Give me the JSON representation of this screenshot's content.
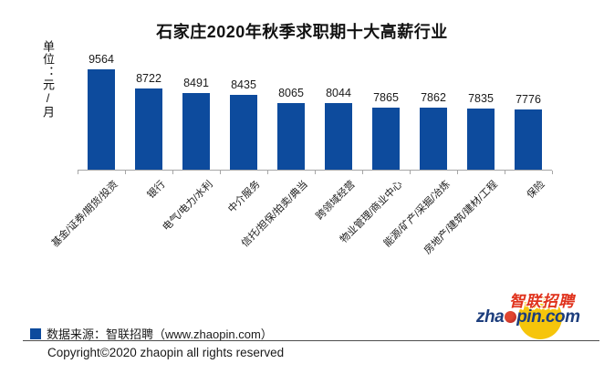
{
  "title": "石家庄2020年秋季求职期十大高薪行业",
  "unit_label": "单位：元/月",
  "chart_data": {
    "type": "bar",
    "title": "石家庄2020年秋季求职期十大高薪行业",
    "ylabel": "单位：元/月",
    "categories": [
      "基金/证券/期货/投资",
      "银行",
      "电气/电力/水利",
      "中介服务",
      "信托/担保/拍卖/典当",
      "跨领域经营",
      "物业管理/商业中心",
      "能源/矿产/采掘/冶炼",
      "房地产/建筑/建材/工程",
      "保险"
    ],
    "values": [
      9564,
      8722,
      8491,
      8435,
      8065,
      8044,
      7865,
      7862,
      7835,
      7776
    ],
    "value_labels_shown": true,
    "bar_color": "#0d4b9d",
    "axis_color": "#a6a6a6",
    "y_axis_ticks_shown": false,
    "legend_position": "bottom-left"
  },
  "legend": {
    "marker_color": "#0d4b9d",
    "text": "数据来源：智联招聘（www.zhaopin.com）"
  },
  "footer": {
    "copyright": "Copyright©2020 zhaopin all rights reserved"
  },
  "logo": {
    "cn": "智联招聘",
    "en_part1": "zha",
    "en_part2": "pin.com",
    "circle_color": "#f6c50b",
    "en_color": "#1d3e7d",
    "cn_color": "#e0321c",
    "dot_color": "#c1272d"
  }
}
